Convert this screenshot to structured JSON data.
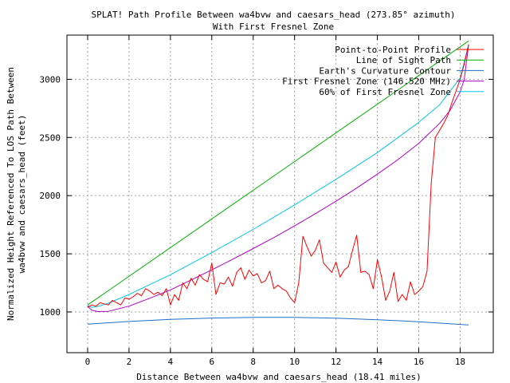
{
  "chart_data": {
    "type": "line",
    "title": "SPLAT! Path Profile Between wa4bvw and caesars_head (273.85° azimuth)",
    "subtitle": "With First Fresnel Zone",
    "xlabel": "Distance Between wa4bvw and caesars_head (18.41 miles)",
    "ylabel_line1": "Normalized Height Referenced To LOS Path Between",
    "ylabel_line2": "wa4bvw and caesars_head (feet)",
    "xlim": [
      -1,
      19.6
    ],
    "ylim": [
      650,
      3380
    ],
    "x_ticks": [
      0,
      2,
      4,
      6,
      8,
      10,
      12,
      14,
      16,
      18
    ],
    "x_tick_labels": [
      "0",
      "2",
      "4",
      "6",
      "8",
      "10",
      "12",
      "14",
      "16",
      "18"
    ],
    "y_ticks": [
      1000,
      1500,
      2000,
      2500,
      3000
    ],
    "y_tick_labels": [
      "1000",
      "1500",
      "2000",
      "2500",
      "3000"
    ],
    "grid": true,
    "legend_position": "top-right",
    "series": [
      {
        "name": "Point-to-Point Profile",
        "color": "#ff0000",
        "x": [
          0,
          0.2,
          0.4,
          0.6,
          0.8,
          1.0,
          1.2,
          1.4,
          1.6,
          1.8,
          2.0,
          2.2,
          2.4,
          2.6,
          2.8,
          3.0,
          3.2,
          3.4,
          3.6,
          3.8,
          4.0,
          4.2,
          4.4,
          4.6,
          4.8,
          5.0,
          5.2,
          5.4,
          5.6,
          5.8,
          6.0,
          6.2,
          6.4,
          6.6,
          6.8,
          7.0,
          7.2,
          7.4,
          7.6,
          7.8,
          8.0,
          8.2,
          8.4,
          8.6,
          8.8,
          9.0,
          9.2,
          9.4,
          9.6,
          9.8,
          10.0,
          10.2,
          10.4,
          10.6,
          10.8,
          11.0,
          11.2,
          11.4,
          11.6,
          11.8,
          12.0,
          12.2,
          12.4,
          12.6,
          12.8,
          13.0,
          13.2,
          13.4,
          13.6,
          13.8,
          14.0,
          14.2,
          14.4,
          14.6,
          14.8,
          15.0,
          15.2,
          15.4,
          15.6,
          15.8,
          16.0,
          16.2,
          16.4,
          16.6,
          16.8,
          17.0,
          17.2,
          17.4,
          17.6,
          17.8,
          18.0,
          18.2,
          18.41
        ],
        "values": [
          1040,
          1060,
          1050,
          1080,
          1070,
          1060,
          1100,
          1080,
          1060,
          1120,
          1110,
          1130,
          1160,
          1140,
          1200,
          1180,
          1150,
          1170,
          1140,
          1200,
          1060,
          1150,
          1100,
          1250,
          1200,
          1290,
          1230,
          1320,
          1280,
          1260,
          1420,
          1150,
          1250,
          1240,
          1300,
          1220,
          1340,
          1380,
          1280,
          1360,
          1310,
          1330,
          1250,
          1270,
          1350,
          1200,
          1230,
          1200,
          1180,
          1120,
          1080,
          1250,
          1650,
          1560,
          1480,
          1530,
          1620,
          1420,
          1380,
          1340,
          1430,
          1300,
          1360,
          1390,
          1530,
          1660,
          1340,
          1350,
          1320,
          1200,
          1450,
          1300,
          1100,
          1180,
          1340,
          1090,
          1150,
          1100,
          1260,
          1150,
          1180,
          1220,
          1350,
          2100,
          2500,
          2560,
          2620,
          2690,
          2800,
          2900,
          3000,
          3130,
          3300
        ]
      },
      {
        "name": "Line of Sight Path",
        "color": "#00b000",
        "x": [
          0,
          18.41
        ],
        "values": [
          1060,
          3330
        ]
      },
      {
        "name": "Earth's Curvature Contour",
        "color": "#1e6fc8",
        "x": [
          0,
          2,
          4,
          6,
          8,
          9.2,
          10,
          12,
          14,
          16,
          18.41
        ],
        "values": [
          895,
          918,
          936,
          948,
          953,
          954,
          953,
          946,
          933,
          916,
          888
        ]
      },
      {
        "name": "First Fresnel Zone (146.520 MHz)",
        "color": "#b000c8",
        "x": [
          0,
          0.2,
          0.5,
          1.0,
          2,
          3,
          4,
          5,
          6,
          7,
          8,
          9,
          10,
          11,
          12,
          13,
          14,
          15,
          16,
          17,
          17.5,
          18,
          18.2,
          18.41
        ],
        "values": [
          1050,
          1015,
          1003,
          1005,
          1050,
          1118,
          1190,
          1275,
          1362,
          1452,
          1545,
          1640,
          1740,
          1845,
          1952,
          2065,
          2185,
          2310,
          2450,
          2620,
          2730,
          2890,
          3000,
          3300
        ]
      },
      {
        "name": "60% of First Fresnel Zone",
        "color": "#00c8e6",
        "x": [
          0,
          0.2,
          0.5,
          1.0,
          2,
          4,
          6,
          8,
          10,
          12,
          14,
          16,
          17,
          18,
          18.41
        ],
        "values": [
          1055,
          1040,
          1048,
          1075,
          1150,
          1320,
          1510,
          1710,
          1920,
          2140,
          2370,
          2630,
          2780,
          3010,
          3300
        ]
      }
    ]
  }
}
